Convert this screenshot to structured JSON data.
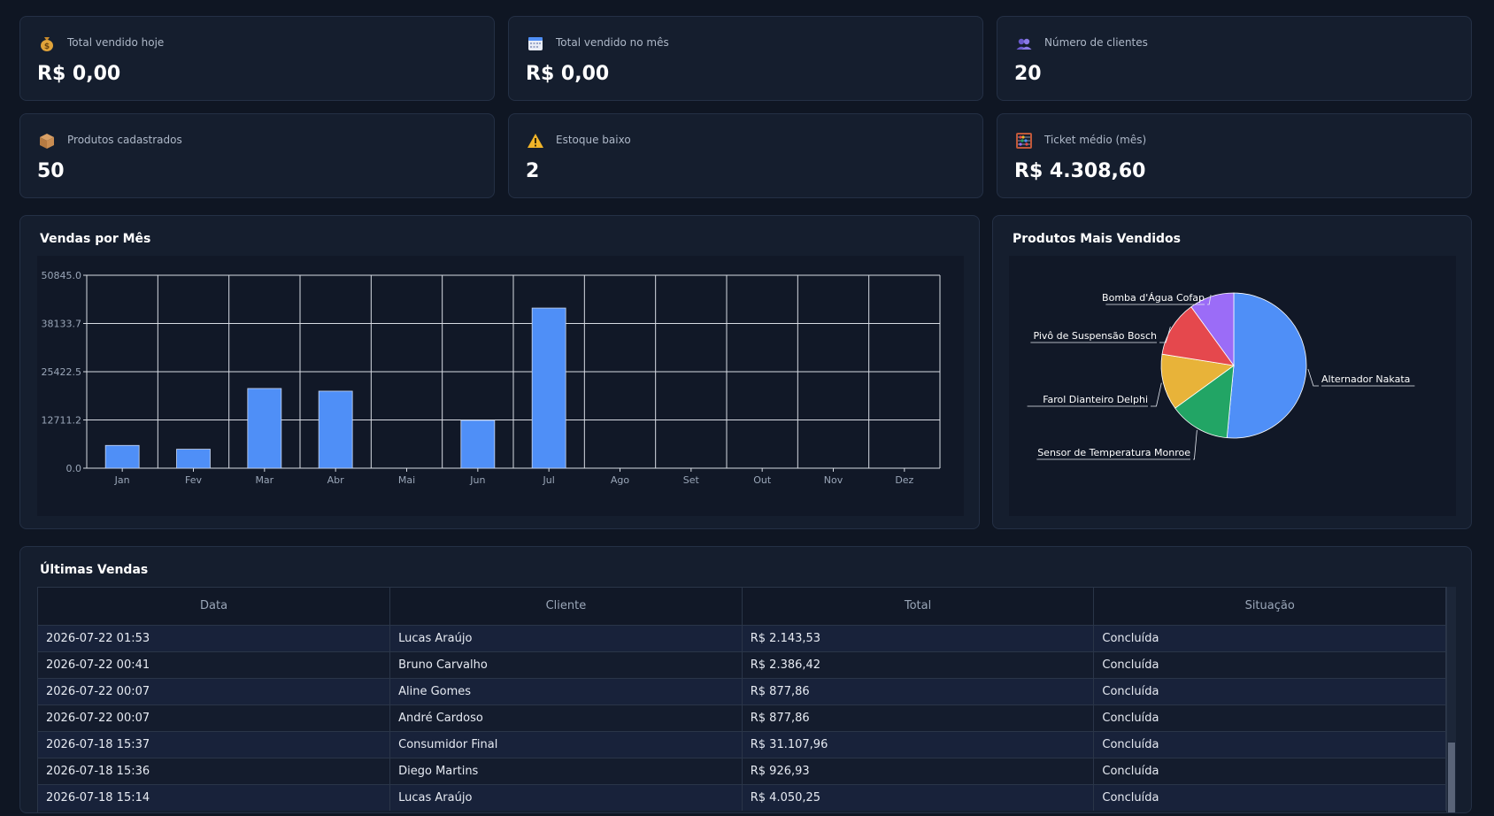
{
  "kpis": [
    {
      "icon": "money-bag-icon",
      "label": "Total vendido hoje",
      "value": "R$ 0,00"
    },
    {
      "icon": "calendar-icon",
      "label": "Total vendido no mês",
      "value": "R$ 0,00"
    },
    {
      "icon": "users-icon",
      "label": "Número de clientes",
      "value": "20"
    },
    {
      "icon": "package-icon",
      "label": "Produtos cadastrados",
      "value": "50"
    },
    {
      "icon": "warning-icon",
      "label": "Estoque baixo",
      "value": "2"
    },
    {
      "icon": "abacus-icon",
      "label": "Ticket médio (mês)",
      "value": "R$ 4.308,60"
    }
  ],
  "sales_chart": {
    "title": "Vendas por Mês"
  },
  "pie_chart": {
    "title": "Produtos Mais Vendidos"
  },
  "chart_data": [
    {
      "type": "bar",
      "title": "Vendas por Mês",
      "categories": [
        "Jan",
        "Fev",
        "Mar",
        "Abr",
        "Mai",
        "Jun",
        "Jul",
        "Ago",
        "Set",
        "Out",
        "Nov",
        "Dez"
      ],
      "values": [
        6000,
        5000,
        21000,
        20300,
        0,
        12600,
        42200,
        0,
        0,
        0,
        0,
        0
      ],
      "yticks": [
        "0.0",
        "12711.2",
        "25422.5",
        "38133.7",
        "50845.0"
      ],
      "ylim": [
        0,
        50845.0
      ],
      "grid": true,
      "color": "#4f8ff7"
    },
    {
      "type": "pie",
      "title": "Produtos Mais Vendidos",
      "labels": [
        "Alternador Nakata",
        "Sensor de Temperatura Monroe",
        "Farol Dianteiro Delphi",
        "Pivô de Suspensão Bosch",
        "Bomba d'Água Cofap"
      ],
      "values": [
        51.5,
        13.5,
        12.5,
        12.5,
        10.0
      ],
      "colors": [
        "#4f8ff7",
        "#22a565",
        "#e8b339",
        "#e5484d",
        "#9b6cf7"
      ]
    }
  ],
  "recent_sales": {
    "title": "Últimas Vendas",
    "columns": [
      "Data",
      "Cliente",
      "Total",
      "Situação"
    ],
    "rows": [
      [
        "2026-07-22 01:53",
        "Lucas Araújo",
        "R$ 2.143,53",
        "Concluída"
      ],
      [
        "2026-07-22 00:41",
        "Bruno Carvalho",
        "R$ 2.386,42",
        "Concluída"
      ],
      [
        "2026-07-22 00:07",
        "Aline Gomes",
        "R$ 877,86",
        "Concluída"
      ],
      [
        "2026-07-22 00:07",
        "André Cardoso",
        "R$ 877,86",
        "Concluída"
      ],
      [
        "2026-07-18 15:37",
        "Consumidor Final",
        "R$ 31.107,96",
        "Concluída"
      ],
      [
        "2026-07-18 15:36",
        "Diego Martins",
        "R$ 926,93",
        "Concluída"
      ],
      [
        "2026-07-18 15:14",
        "Lucas Araújo",
        "R$ 4.050,25",
        "Concluída"
      ]
    ]
  }
}
